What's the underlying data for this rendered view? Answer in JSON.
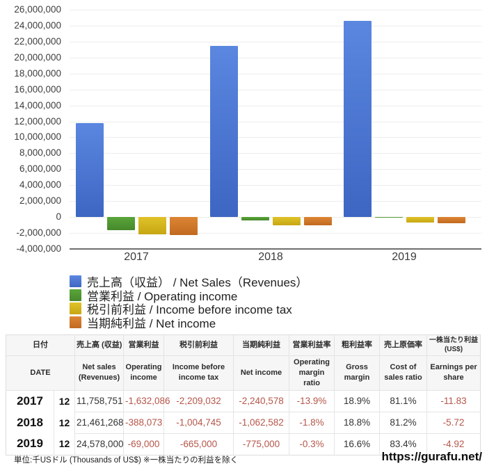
{
  "chart_data": {
    "type": "bar",
    "title": "",
    "xlabel": "",
    "ylabel": "",
    "categories": [
      "2017",
      "2018",
      "2019"
    ],
    "series": [
      {
        "key": "net-sales",
        "name": "売上高（収益） / Net Sales（Revenues）",
        "color": "#4b79d6",
        "color_light": "#5b87e0",
        "color_dark": "#3d66c2",
        "values": [
          11758751,
          21461268,
          24578000
        ]
      },
      {
        "key": "operating-income",
        "name": "営業利益 / Operating income",
        "color": "#519a33",
        "color_light": "#5aa53a",
        "color_dark": "#47882b",
        "values": [
          -1632086,
          -388073,
          -69000
        ]
      },
      {
        "key": "income-before-income-tax",
        "name": "税引前利益 / Income before income tax",
        "color": "#d6b81e",
        "color_light": "#e0c228",
        "color_dark": "#c6a714",
        "values": [
          -2209032,
          -1004745,
          -665000
        ]
      },
      {
        "key": "net-income",
        "name": "当期純利益 / Net income",
        "color": "#d0752a",
        "color_light": "#dd8534",
        "color_dark": "#c16a20",
        "values": [
          -2240578,
          -1062582,
          -775000
        ]
      }
    ],
    "ylim": [
      -4000000,
      26000000
    ],
    "y_tick_step": 2000000,
    "grid": true,
    "legend_position": "below-chart-left"
  },
  "table": {
    "header_ja": [
      "日付",
      "売上高 (収益)",
      "営業利益",
      "税引前利益",
      "当期純利益",
      "営業利益率",
      "粗利益率",
      "売上原価率",
      "一株当たり利益 (US$)"
    ],
    "header_en": [
      "DATE",
      "Net sales (Revenues)",
      "Operating income",
      "Income before income tax",
      "Net income",
      "Operating margin ratio",
      "Gross margin",
      "Cost of sales ratio",
      "Earnings per share"
    ],
    "rows": [
      {
        "year": "2017",
        "month": "12",
        "values": [
          "11,758,751",
          "-1,632,086",
          "-2,209,032",
          "-2,240,578",
          "-13.9%",
          "18.9%",
          "81.1%",
          "-11.83"
        ]
      },
      {
        "year": "2018",
        "month": "12",
        "values": [
          "21,461,268",
          "-388,073",
          "-1,004,745",
          "-1,062,582",
          "-1.8%",
          "18.8%",
          "81.2%",
          "-5.72"
        ]
      },
      {
        "year": "2019",
        "month": "12",
        "values": [
          "24,578,000",
          "-69,000",
          "-665,000",
          "-775,000",
          "-0.3%",
          "16.6%",
          "83.4%",
          "-4.92"
        ]
      }
    ],
    "negative_color": "#b5564a"
  },
  "footer": {
    "note": "単位:千USドル (Thousands of US$) ※一株当たりの利益を除く",
    "url": "https://gurafu.net/"
  }
}
